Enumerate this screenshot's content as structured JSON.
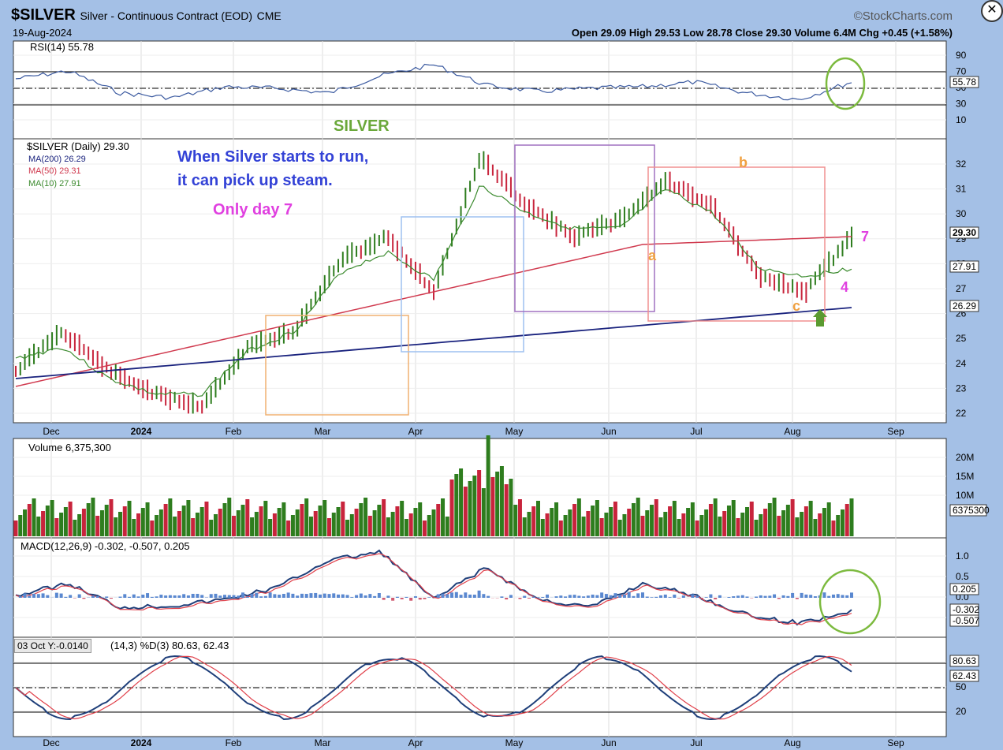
{
  "header": {
    "symbol": "$SILVER",
    "description": "Silver - Continuous Contract (EOD)",
    "exchange": "CME",
    "brand": "©StockCharts.com",
    "date": "19-Aug-2024",
    "ohlc": "Open 29.09  High 29.53  Low 28.78  Close 29.30  Volume 6.4M  Chg +0.45 (+1.58%)",
    "tooltip": "03 Oct Y:-0.0140"
  },
  "colors": {
    "up": "#2e7d1e",
    "down": "#c8243c",
    "ma200": "#1a237e",
    "ma50": "#d0394e",
    "ma10": "#3b8a2e",
    "rsi": "#3b5aa0",
    "macd": "#1f3f7a",
    "signal": "#e0404a"
  },
  "chart_data": [
    {
      "type": "line",
      "title": "RSI(14) 55.78",
      "x": [
        "Dec",
        "2024",
        "Feb",
        "Mar",
        "Apr",
        "May",
        "Jun",
        "Jul",
        "Aug",
        "Sep"
      ],
      "series": [
        {
          "name": "RSI(14)",
          "values": [
            65,
            50,
            40,
            48,
            60,
            72,
            55,
            48,
            38,
            56
          ]
        }
      ],
      "ylim": [
        0,
        100
      ],
      "yticks": [
        10,
        30,
        50,
        70,
        90
      ],
      "annotations": [
        "55.78"
      ]
    },
    {
      "type": "line",
      "title": "$SILVER (Daily) 29.30",
      "x": [
        "Dec",
        "2024",
        "Feb",
        "Mar",
        "Apr",
        "May",
        "Jun",
        "Jul",
        "Aug",
        "Sep"
      ],
      "series": [
        {
          "name": "$SILVER",
          "values": [
            23.5,
            24.5,
            22.6,
            22.8,
            25.2,
            28.0,
            29.3,
            30.5,
            27.0,
            29.3
          ]
        },
        {
          "name": "MA(200) 26.29",
          "values": [
            23.4,
            23.5,
            23.6,
            23.7,
            24.5,
            25.0,
            25.5,
            25.9,
            26.1,
            26.3
          ]
        },
        {
          "name": "MA(50) 29.31",
          "values": [
            22.9,
            23.3,
            23.2,
            23.5,
            25.3,
            27.0,
            28.8,
            29.6,
            29.3,
            29.3
          ]
        },
        {
          "name": "MA(10) 27.91",
          "values": [
            23.2,
            24.2,
            22.7,
            22.9,
            25.6,
            27.7,
            29.2,
            30.6,
            27.2,
            27.9
          ]
        }
      ],
      "ylim": [
        21.5,
        33
      ],
      "yticks": [
        22,
        23,
        24,
        25,
        26,
        27,
        28,
        29,
        30,
        31,
        32
      ],
      "annotations": [
        "SILVER",
        "When Silver starts to run,",
        "it can pick up steam.",
        "Only day 7",
        "a",
        "b",
        "c",
        "4",
        "7",
        "29.30",
        "27.91",
        "26.29"
      ]
    },
    {
      "type": "bar",
      "title": "Volume 6,375,300",
      "yticks": [
        "10M",
        "15M",
        "20M"
      ],
      "annotations": [
        "6375300"
      ]
    },
    {
      "type": "line",
      "title": "MACD(12,26,9) -0.302, -0.507, 0.205",
      "series": [
        {
          "name": "MACD",
          "values": [
            0.1,
            0.2,
            -0.3,
            -0.2,
            0.5,
            0.9,
            0.1,
            0.3,
            -0.6,
            -0.3
          ]
        },
        {
          "name": "Signal",
          "values": [
            0.0,
            0.2,
            -0.2,
            -0.2,
            0.3,
            0.8,
            0.3,
            0.2,
            -0.4,
            -0.5
          ]
        },
        {
          "name": "Histogram",
          "values": [
            0.1,
            0.0,
            -0.1,
            0.0,
            0.2,
            0.2,
            -0.2,
            0.1,
            -0.2,
            0.2
          ]
        }
      ],
      "ylim": [
        -1.0,
        1.4
      ],
      "yticks": [
        "-0.5",
        "0.0",
        "0.5",
        "1.0"
      ],
      "annotations": [
        "0.205",
        "-0.302",
        "-0.507"
      ]
    },
    {
      "type": "line",
      "title": "%K(14,3) %D(3) 80.63, 62.43",
      "series": [
        {
          "name": "%K",
          "values": [
            90,
            20,
            85,
            15,
            90,
            20,
            95,
            10,
            85,
            80.63
          ]
        },
        {
          "name": "%D",
          "values": [
            85,
            25,
            80,
            20,
            85,
            25,
            90,
            15,
            80,
            62.43
          ]
        }
      ],
      "ylim": [
        0,
        100
      ],
      "yticks": [
        20,
        50,
        80
      ],
      "annotations": [
        "80.63",
        "62.43"
      ]
    }
  ],
  "labels": {
    "rsi_title": "RSI(14) 55.78",
    "price_title": "$SILVER (Daily) 29.30",
    "ma200": "MA(200) 26.29",
    "ma50": "MA(50) 29.31",
    "ma10": "MA(10) 27.91",
    "vol_title": "Volume 6,375,300",
    "macd_title": "MACD(12,26,9) -0.302, -0.507, 0.205",
    "sto_title": "(14,3) %D(3) 80.63, 62.43",
    "note1": "When Silver starts to run,",
    "note2": "it can pick up steam.",
    "note3": "Only day 7",
    "silver": "SILVER",
    "a": "a",
    "b": "b",
    "c": "c",
    "n4": "4",
    "n7": "7",
    "months": [
      "Dec",
      "2024",
      "Feb",
      "Mar",
      "Apr",
      "May",
      "Jun",
      "Jul",
      "Aug",
      "Sep"
    ],
    "rsi_ticks": [
      "90",
      "70",
      "50",
      "30",
      "10"
    ],
    "price_ticks": [
      "32",
      "31",
      "30",
      "29",
      "28",
      "27",
      "26",
      "25",
      "24",
      "23",
      "22"
    ],
    "vol_ticks": [
      "20M",
      "15M",
      "10M"
    ],
    "macd_ticks": [
      "1.0",
      "0.5",
      "0.0",
      "-0.5"
    ],
    "sto_ticks": [
      "80",
      "50",
      "20"
    ],
    "last_price": "29.30",
    "last_ma10": "27.91",
    "last_ma200": "26.29",
    "last_rsi": "55.78",
    "last_vol": "6375300",
    "macd_v1": "0.205",
    "macd_v2": "-0.302",
    "macd_v3": "-0.507",
    "sto_v1": "80.63",
    "sto_v2": "62.43"
  }
}
